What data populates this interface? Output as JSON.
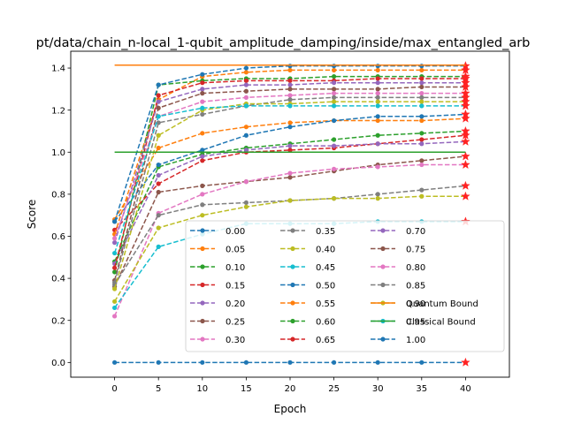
{
  "chart_data": {
    "type": "line",
    "title": "pt/data/chain_n-local_1-qubit_amplitude_damping/inside/max_entangled_arb",
    "xlabel": "Epoch",
    "ylabel": "Score",
    "xlim": [
      -5,
      45
    ],
    "ylim": [
      -0.07,
      1.48
    ],
    "xticks": [
      0,
      5,
      10,
      15,
      20,
      25,
      30,
      35,
      40
    ],
    "yticks": [
      0.0,
      0.2,
      0.4,
      0.6,
      0.8,
      1.0,
      1.2,
      1.4
    ],
    "ytick_labels": [
      "0.0",
      "0.2",
      "0.4",
      "0.6",
      "0.8",
      "1.0",
      "1.2",
      "1.4"
    ],
    "grid": false,
    "legend_position": "lower-right",
    "x": [
      0,
      5,
      10,
      15,
      20,
      25,
      30,
      35,
      40
    ],
    "series": [
      {
        "name": "0.00",
        "color": "#1f77b4",
        "values": [
          0.0,
          0.0,
          0.0,
          0.0,
          0.0,
          0.0,
          0.0,
          0.0,
          0.0
        ]
      },
      {
        "name": "0.05",
        "color": "#ff7f0e",
        "values": [
          0.68,
          1.02,
          1.09,
          1.12,
          1.14,
          1.15,
          1.15,
          1.15,
          1.16
        ]
      },
      {
        "name": "0.10",
        "color": "#2ca02c",
        "values": [
          0.48,
          0.93,
          0.99,
          1.02,
          1.04,
          1.06,
          1.08,
          1.09,
          1.1
        ]
      },
      {
        "name": "0.15",
        "color": "#d62728",
        "values": [
          0.63,
          0.85,
          0.96,
          1.0,
          1.01,
          1.02,
          1.04,
          1.06,
          1.08
        ]
      },
      {
        "name": "0.20",
        "color": "#9467bd",
        "values": [
          0.47,
          0.89,
          0.98,
          1.01,
          1.03,
          1.03,
          1.04,
          1.04,
          1.05
        ]
      },
      {
        "name": "0.25",
        "color": "#8c564b",
        "values": [
          0.36,
          0.81,
          0.84,
          0.86,
          0.88,
          0.91,
          0.94,
          0.96,
          0.98
        ]
      },
      {
        "name": "0.30",
        "color": "#e377c2",
        "values": [
          0.22,
          0.71,
          0.8,
          0.86,
          0.9,
          0.92,
          0.93,
          0.94,
          0.94
        ]
      },
      {
        "name": "0.35",
        "color": "#7f7f7f",
        "values": [
          0.37,
          0.7,
          0.75,
          0.76,
          0.77,
          0.78,
          0.8,
          0.82,
          0.84
        ]
      },
      {
        "name": "0.40",
        "color": "#bcbd22",
        "values": [
          0.29,
          0.64,
          0.7,
          0.74,
          0.77,
          0.78,
          0.78,
          0.79,
          0.79
        ]
      },
      {
        "name": "0.45",
        "color": "#17becf",
        "values": [
          0.26,
          0.55,
          0.61,
          0.66,
          0.66,
          0.66,
          0.67,
          0.67,
          0.67
        ]
      },
      {
        "name": "0.50",
        "color": "#1f77b4",
        "values": [
          0.67,
          0.94,
          1.01,
          1.08,
          1.12,
          1.15,
          1.17,
          1.17,
          1.18
        ]
      },
      {
        "name": "0.55",
        "color": "#ff7f0e",
        "values": [
          0.61,
          1.25,
          1.36,
          1.38,
          1.39,
          1.39,
          1.39,
          1.39,
          1.39
        ]
      },
      {
        "name": "0.60",
        "color": "#2ca02c",
        "values": [
          0.43,
          1.32,
          1.34,
          1.35,
          1.35,
          1.36,
          1.36,
          1.36,
          1.36
        ]
      },
      {
        "name": "0.65",
        "color": "#d62728",
        "values": [
          0.45,
          1.27,
          1.33,
          1.34,
          1.34,
          1.34,
          1.35,
          1.35,
          1.35
        ]
      },
      {
        "name": "0.70",
        "color": "#9467bd",
        "values": [
          0.57,
          1.24,
          1.3,
          1.32,
          1.32,
          1.33,
          1.33,
          1.33,
          1.33
        ]
      },
      {
        "name": "0.75",
        "color": "#8c564b",
        "values": [
          0.39,
          1.21,
          1.28,
          1.29,
          1.3,
          1.3,
          1.3,
          1.31,
          1.31
        ]
      },
      {
        "name": "0.80",
        "color": "#e377c2",
        "values": [
          0.59,
          1.17,
          1.24,
          1.26,
          1.27,
          1.28,
          1.28,
          1.28,
          1.28
        ]
      },
      {
        "name": "0.85",
        "color": "#7f7f7f",
        "values": [
          0.38,
          1.14,
          1.18,
          1.22,
          1.25,
          1.26,
          1.26,
          1.26,
          1.26
        ]
      },
      {
        "name": "0.90",
        "color": "#bcbd22",
        "values": [
          0.35,
          1.08,
          1.2,
          1.23,
          1.23,
          1.24,
          1.24,
          1.24,
          1.24
        ]
      },
      {
        "name": "0.95",
        "color": "#17becf",
        "values": [
          0.52,
          1.17,
          1.21,
          1.22,
          1.22,
          1.22,
          1.22,
          1.22,
          1.22
        ]
      },
      {
        "name": "1.00",
        "color": "#1f77b4",
        "values": [
          0.67,
          1.32,
          1.37,
          1.4,
          1.41,
          1.41,
          1.41,
          1.41,
          1.41
        ]
      }
    ],
    "reference_lines": [
      {
        "name": "Quantum Bound",
        "color": "#ff7f0e",
        "y": 1.414,
        "x_range": [
          0,
          40
        ]
      },
      {
        "name": "Classical Bound",
        "color": "#2ca02c",
        "y": 1.0,
        "x_range": [
          0,
          40
        ]
      }
    ],
    "end_marker": "red-star"
  }
}
